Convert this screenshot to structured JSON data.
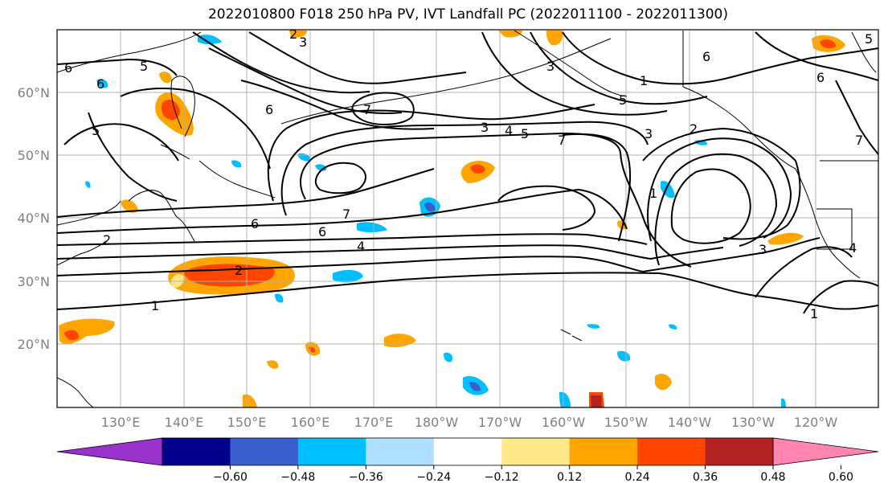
{
  "title": "2022010800 F018 250 hPa PV, IVT Landfall PC (2022011100 - 2022011300)",
  "lat_labels": [
    "60°N",
    "50°N",
    "40°N",
    "30°N",
    "20°N"
  ],
  "lon_labels": [
    "130°E",
    "140°E",
    "150°E",
    "160°E",
    "170°E",
    "180°W",
    "170°W",
    "160°W",
    "150°W",
    "140°W",
    "130°W",
    "120°W"
  ],
  "contour_labels": [
    "6",
    "5",
    "6",
    "5",
    "6",
    "2",
    "3",
    "3",
    "4",
    "5",
    "7",
    "1",
    "5",
    "6",
    "6",
    "3",
    "2",
    "1",
    "7",
    "7",
    "6",
    "4",
    "2",
    "2",
    "1",
    "3",
    "4",
    "1",
    "7",
    "6",
    "3",
    "5"
  ],
  "colorbar": {
    "ticks": [
      "−0.60",
      "−0.48",
      "−0.36",
      "−0.24",
      "−0.12",
      "0.12",
      "0.24",
      "0.36",
      "0.48",
      "0.60"
    ],
    "colors": [
      "#9932CC",
      "#00008B",
      "#3A5ECC",
      "#00BFFF",
      "#B0E0FF",
      "#FFFFFF",
      "#FFE88A",
      "#FFA500",
      "#FF4500",
      "#B22222",
      "#FF85B0"
    ]
  }
}
